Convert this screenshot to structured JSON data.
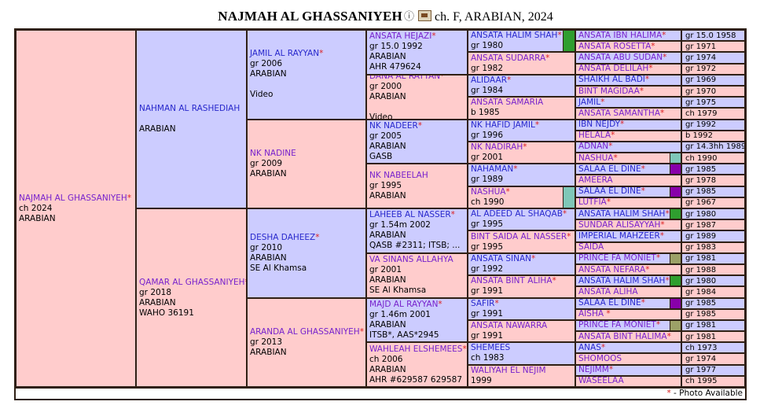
{
  "title": {
    "name": "NAJMAH AL GHASSANIYEH",
    "suffix": "ch. F, ARABIAN, 2024"
  },
  "footer": {
    "star": "*",
    "text": " - Photo Available"
  },
  "colors": {
    "background_pink": "#FFCCCC",
    "background_lavender": "#CCCCFF",
    "link_blue": "#2828CC",
    "link_purple": "#7722CC",
    "star_red": "#DD2222",
    "border": "#2F2015",
    "squares": {
      "green": "#2F9E2F",
      "teal": "#7FC7B8",
      "purple": "#8800AA",
      "olive": "#9CA167"
    }
  },
  "pedigree": {
    "subject": {
      "name": "NAJMAH AL GHASSANIYEH",
      "star": true,
      "link": "purple",
      "bg": "pink",
      "details": [
        "ch 2024",
        "ARABIAN"
      ]
    },
    "generations": [
      [
        {
          "name": "NAHMAN AL RASHEDIAH",
          "star": false,
          "link": "blue",
          "bg": "lav",
          "details": [
            "",
            "ARABIAN"
          ]
        },
        {
          "name": "QAMAR AL GHASSANIYEH",
          "star": true,
          "link": "purple",
          "bg": "pink",
          "details": [
            "gr 2018",
            "ARABIAN",
            "WAHO 36191"
          ]
        }
      ],
      [
        {
          "name": "JAMIL AL RAYYAN",
          "star": true,
          "link": "blue",
          "bg": "lav",
          "details": [
            "gr 2006",
            "ARABIAN"
          ],
          "video": "Video"
        },
        {
          "name": "NK NADINE",
          "star": false,
          "link": "purple",
          "bg": "pink",
          "details": [
            "gr 2009",
            "ARABIAN"
          ]
        },
        {
          "name": "DESHA DAHEEZ",
          "star": true,
          "link": "blue",
          "bg": "lav",
          "details": [
            "gr 2010",
            "ARABIAN",
            "SE Al Khamsa"
          ]
        },
        {
          "name": "ARANDA AL GHASSANIYEH",
          "star": true,
          "link": "purple",
          "bg": "pink",
          "details": [
            "gr 2013",
            "ARABIAN"
          ]
        }
      ],
      [
        {
          "name": "ANSATA HEJAZI",
          "star": true,
          "link": "purple",
          "bg": "lav",
          "details": [
            "gr 15.0 1992",
            "ARABIAN",
            "AHR 479624"
          ]
        },
        {
          "name": "DANA AL RAYYAN",
          "star": true,
          "link": "purple",
          "bg": "pink",
          "details": [
            "gr 2000",
            "ARABIAN"
          ],
          "video": "Video"
        },
        {
          "name": "NK NADEER",
          "star": true,
          "link": "blue",
          "bg": "lav",
          "details": [
            "gr 2005",
            "ARABIAN",
            "GASB"
          ]
        },
        {
          "name": "NK NABEELAH",
          "star": false,
          "link": "purple",
          "bg": "pink",
          "details": [
            "gr 1995",
            "ARABIAN"
          ]
        },
        {
          "name": "LAHEEB AL NASSER",
          "star": true,
          "link": "blue",
          "bg": "lav",
          "details": [
            "gr 1.54m 2002",
            "ARABIAN",
            "QASB #2311; ITSB; ..."
          ]
        },
        {
          "name": "VA SINANS ALLAHYA",
          "star": false,
          "link": "purple",
          "bg": "pink",
          "details": [
            "gr 2001",
            "ARABIAN",
            "SE Al Khamsa"
          ]
        },
        {
          "name": "MAJD AL RAYYAN",
          "star": true,
          "link": "purple",
          "bg": "lav",
          "details": [
            "gr 1.46m 2001",
            "ARABIAN",
            "ITSB*, AAS*2945"
          ]
        },
        {
          "name": "WAHLEAH ELSHEMEES",
          "star": true,
          "link": "purple",
          "bg": "pink",
          "details": [
            "ch 2006",
            "ARABIAN",
            "AHR #629587 629587"
          ]
        }
      ],
      [
        {
          "name": "ANSATA HALIM SHAH",
          "star": true,
          "link": "blue",
          "bg": "lav",
          "details": [
            "gr 1980"
          ],
          "square": "green"
        },
        {
          "name": "ANSATA SUDARRA",
          "star": true,
          "link": "purple",
          "bg": "pink",
          "details": [
            "gr 1982"
          ]
        },
        {
          "name": "ALIDAAR",
          "star": true,
          "link": "blue",
          "bg": "lav",
          "details": [
            "gr 1984"
          ]
        },
        {
          "name": "ANSATA SAMARIA",
          "star": false,
          "link": "purple",
          "bg": "pink",
          "details": [
            "b 1985"
          ]
        },
        {
          "name": "NK HAFID JAMIL",
          "star": true,
          "link": "blue",
          "bg": "lav",
          "details": [
            "gr 1996"
          ]
        },
        {
          "name": "NK NADIRAH",
          "star": true,
          "link": "purple",
          "bg": "pink",
          "details": [
            "gr 2001"
          ]
        },
        {
          "name": "NAHAMAN",
          "star": true,
          "link": "blue",
          "bg": "lav",
          "details": [
            "gr 1989"
          ]
        },
        {
          "name": "NASHUA",
          "star": true,
          "link": "purple",
          "bg": "pink",
          "details": [
            "ch 1990"
          ],
          "square": "teal"
        },
        {
          "name": "AL ADEED AL SHAQAB",
          "star": true,
          "link": "blue",
          "bg": "lav",
          "details": [
            "gr 1995"
          ]
        },
        {
          "name": "BINT SAIDA AL NASSER",
          "star": true,
          "link": "purple",
          "bg": "pink",
          "details": [
            "gr 1995"
          ]
        },
        {
          "name": "ANSATA SINAN",
          "star": true,
          "link": "blue",
          "bg": "lav",
          "details": [
            "gr 1992"
          ]
        },
        {
          "name": "ANSATA BINT ALIHA",
          "star": true,
          "link": "purple",
          "bg": "pink",
          "details": [
            "gr 1991"
          ]
        },
        {
          "name": "SAFIR",
          "star": true,
          "link": "blue",
          "bg": "lav",
          "details": [
            "gr 1991"
          ]
        },
        {
          "name": "ANSATA NAWARRA",
          "star": false,
          "link": "purple",
          "bg": "pink",
          "details": [
            "gr 1991"
          ]
        },
        {
          "name": "SHEMEES",
          "star": false,
          "link": "blue",
          "bg": "lav",
          "details": [
            "ch 1983"
          ]
        },
        {
          "name": "WALIYAH EL NEJIM",
          "star": false,
          "link": "purple",
          "bg": "pink",
          "details": [
            "1999"
          ]
        }
      ],
      [
        {
          "name": "ANSATA IBN HALIMA",
          "star": true,
          "link": "purple",
          "bg": "lav",
          "year": "gr 15.0 1958"
        },
        {
          "name": "ANSATA ROSETTA",
          "star": true,
          "link": "purple",
          "bg": "pink",
          "year": "gr 1971"
        },
        {
          "name": "ANSATA ABU SUDAN",
          "star": true,
          "link": "purple",
          "bg": "lav",
          "year": "gr 1974"
        },
        {
          "name": "ANSATA DELILAH",
          "star": true,
          "link": "purple",
          "bg": "pink",
          "year": "gr 1972"
        },
        {
          "name": "SHAIKH AL BADI",
          "star": true,
          "link": "blue",
          "bg": "lav",
          "year": "gr 1969"
        },
        {
          "name": "BINT MAGIDAA",
          "star": true,
          "link": "purple",
          "bg": "pink",
          "year": "gr 1970"
        },
        {
          "name": "JAMIL",
          "star": true,
          "link": "blue",
          "bg": "lav",
          "year": "gr 1975"
        },
        {
          "name": "ANSATA SAMANTHA",
          "star": true,
          "link": "purple",
          "bg": "pink",
          "year": "ch 1979"
        },
        {
          "name": "IBN NEJDY",
          "star": true,
          "link": "blue",
          "bg": "lav",
          "year": "gr 1992"
        },
        {
          "name": "HELALA",
          "star": true,
          "link": "purple",
          "bg": "pink",
          "year": "b 1992"
        },
        {
          "name": "ADNAN",
          "star": true,
          "link": "purple",
          "bg": "lav",
          "year": "gr 14.3hh 1989"
        },
        {
          "name": "NASHUA",
          "star": true,
          "link": "purple",
          "bg": "pink",
          "year": "ch 1990",
          "square": "teal"
        },
        {
          "name": "SALAA EL DINE",
          "star": true,
          "link": "blue",
          "bg": "lav",
          "year": "gr 1985",
          "square": "purple"
        },
        {
          "name": "AMEERA",
          "star": false,
          "link": "purple",
          "bg": "pink",
          "year": "gr 1978"
        },
        {
          "name": "SALAA EL DINE",
          "star": true,
          "link": "blue",
          "bg": "lav",
          "year": "gr 1985",
          "square": "purple"
        },
        {
          "name": "LUTFIA",
          "star": true,
          "link": "purple",
          "bg": "pink",
          "year": "gr 1967"
        },
        {
          "name": "ANSATA HALIM SHAH",
          "star": true,
          "link": "blue",
          "bg": "lav",
          "year": "gr 1980",
          "square": "green"
        },
        {
          "name": "SUNDAR ALISAYYAH",
          "star": true,
          "link": "purple",
          "bg": "pink",
          "year": "gr 1987"
        },
        {
          "name": "IMPERIAL MAHZEER",
          "star": true,
          "link": "blue",
          "bg": "lav",
          "year": "gr 1989"
        },
        {
          "name": "SAIDA",
          "star": false,
          "link": "purple",
          "bg": "pink",
          "year": "gr 1983"
        },
        {
          "name": "PRINCE FA MONIET",
          "star": true,
          "link": "purple",
          "bg": "lav",
          "year": "gr 1981",
          "square": "olive"
        },
        {
          "name": "ANSATA NEFARA",
          "star": true,
          "link": "purple",
          "bg": "pink",
          "year": "gr 1988"
        },
        {
          "name": "ANSATA HALIM SHAH",
          "star": true,
          "link": "blue",
          "bg": "lav",
          "year": "gr 1980",
          "square": "green"
        },
        {
          "name": "ANSATA ALIHA",
          "star": false,
          "link": "purple",
          "bg": "pink",
          "year": "gr 1984"
        },
        {
          "name": "SALAA EL DINE",
          "star": true,
          "link": "blue",
          "bg": "lav",
          "year": "gr 1985",
          "square": "purple"
        },
        {
          "name": "AISHA ",
          "star": true,
          "link": "purple",
          "bg": "pink",
          "year": "gr 1985"
        },
        {
          "name": "PRINCE FA MONIET",
          "star": true,
          "link": "purple",
          "bg": "lav",
          "year": "gr 1981",
          "square": "olive"
        },
        {
          "name": "ANSATA BINT HALIMA",
          "star": true,
          "link": "purple",
          "bg": "pink",
          "year": "gr 1981"
        },
        {
          "name": "ANAS",
          "star": true,
          "link": "blue",
          "bg": "lav",
          "year": "ch 1973"
        },
        {
          "name": "SHOMOOS",
          "star": false,
          "link": "purple",
          "bg": "pink",
          "year": "gr 1974"
        },
        {
          "name": "NEJIMM",
          "star": true,
          "link": "purple",
          "bg": "lav",
          "year": "gr 1977"
        },
        {
          "name": "WASEELAA",
          "star": false,
          "link": "purple",
          "bg": "pink",
          "year": "ch 1995"
        }
      ]
    ]
  }
}
